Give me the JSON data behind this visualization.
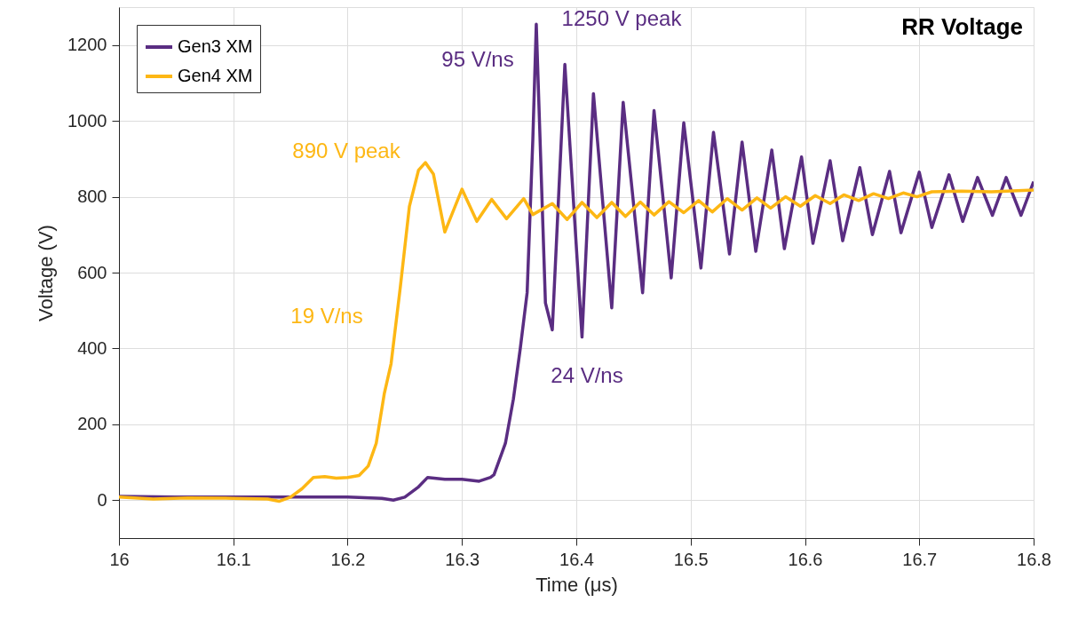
{
  "chart_data": {
    "type": "line",
    "title": "RR Voltage",
    "xlabel": "Time (μs)",
    "ylabel": "Voltage (V)",
    "xlim": [
      16,
      16.8
    ],
    "xticks": [
      16,
      16.1,
      16.2,
      16.3,
      16.4,
      16.5,
      16.6,
      16.7,
      16.8
    ],
    "ylim": [
      -100,
      1300
    ],
    "yticks": [
      0,
      200,
      400,
      600,
      800,
      1000,
      1200
    ],
    "grid": true,
    "legend": "top left",
    "line_style": "solid",
    "marker": "none",
    "series": [
      {
        "name": "Gen3 XM",
        "color": "#5a2d82",
        "x": [
          16.0,
          16.05,
          16.1,
          16.15,
          16.2,
          16.23,
          16.24,
          16.25,
          16.262,
          16.27,
          16.285,
          16.3,
          16.315,
          16.325,
          16.328,
          16.338,
          16.345,
          16.351,
          16.357,
          16.362,
          16.365,
          16.373,
          16.379,
          16.39,
          16.405,
          16.415,
          16.431,
          16.441,
          16.458,
          16.468,
          16.483,
          16.494,
          16.509,
          16.52,
          16.534,
          16.545,
          16.557,
          16.571,
          16.582,
          16.597,
          16.607,
          16.622,
          16.633,
          16.648,
          16.659,
          16.674,
          16.684,
          16.7,
          16.711,
          16.726,
          16.738,
          16.751,
          16.764,
          16.776,
          16.789,
          16.8
        ],
        "values": [
          10,
          8,
          8,
          8,
          8,
          5,
          0,
          8,
          35,
          60,
          55,
          55,
          50,
          60,
          67,
          150,
          267,
          400,
          547,
          953,
          1255,
          520,
          449,
          1149,
          430,
          1072,
          507,
          1049,
          547,
          1027,
          586,
          995,
          612,
          970,
          649,
          944,
          656,
          923,
          663,
          905,
          677,
          895,
          684,
          877,
          700,
          867,
          705,
          865,
          719,
          858,
          735,
          851,
          751,
          851,
          751,
          840
        ]
      },
      {
        "name": "Gen4 XM",
        "color": "#fdb714",
        "x": [
          16.0,
          16.03,
          16.06,
          16.1,
          16.13,
          16.14,
          16.15,
          16.16,
          16.17,
          16.18,
          16.19,
          16.2,
          16.21,
          16.218,
          16.225,
          16.232,
          16.238,
          16.246,
          16.254,
          16.262,
          16.268,
          16.275,
          16.285,
          16.3,
          16.313,
          16.326,
          16.339,
          16.354,
          16.362,
          16.379,
          16.392,
          16.405,
          16.418,
          16.431,
          16.443,
          16.456,
          16.468,
          16.481,
          16.494,
          16.507,
          16.519,
          16.532,
          16.545,
          16.558,
          16.57,
          16.583,
          16.596,
          16.609,
          16.622,
          16.634,
          16.647,
          16.66,
          16.673,
          16.686,
          16.698,
          16.711,
          16.737,
          16.763,
          16.8
        ],
        "values": [
          8,
          3,
          6,
          5,
          3,
          -3,
          8,
          30,
          60,
          62,
          58,
          60,
          65,
          90,
          150,
          280,
          360,
          560,
          774,
          870,
          890,
          860,
          707,
          820,
          735,
          793,
          742,
          795,
          753,
          782,
          740,
          785,
          745,
          785,
          748,
          786,
          752,
          787,
          758,
          790,
          760,
          795,
          765,
          797,
          770,
          800,
          775,
          803,
          782,
          805,
          790,
          808,
          795,
          810,
          800,
          813,
          815,
          813,
          818
        ]
      }
    ],
    "annotations": [
      "1250 V peak",
      "95 V/ns",
      "24 V/ns",
      "890 V peak",
      "19 V/ns"
    ]
  }
}
